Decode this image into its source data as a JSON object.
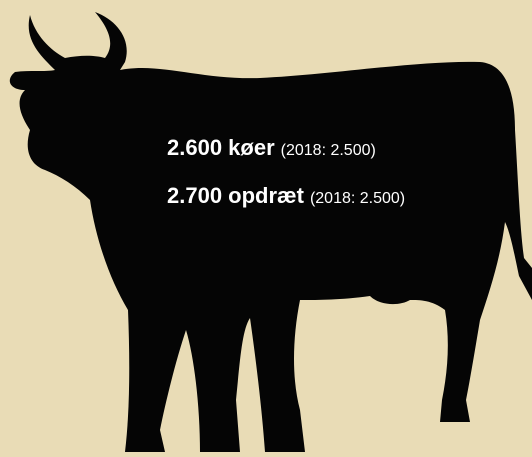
{
  "lines": [
    {
      "main": "2.600 køer",
      "note": "(2018: 2.500)"
    },
    {
      "main": "2.700 opdræt",
      "note": "(2018: 2.500)"
    }
  ]
}
